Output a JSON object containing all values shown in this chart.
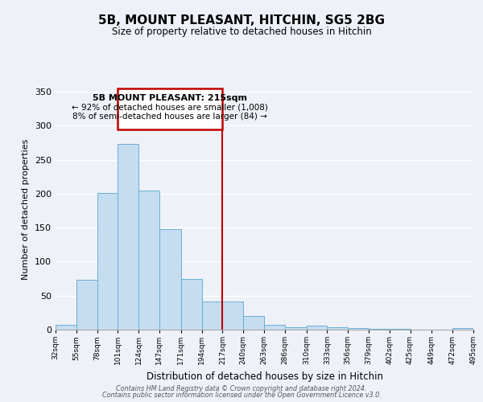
{
  "title": "5B, MOUNT PLEASANT, HITCHIN, SG5 2BG",
  "subtitle": "Size of property relative to detached houses in Hitchin",
  "xlabel": "Distribution of detached houses by size in Hitchin",
  "ylabel": "Number of detached properties",
  "bin_edges": [
    32,
    55,
    78,
    101,
    124,
    147,
    171,
    194,
    217,
    240,
    263,
    286,
    310,
    333,
    356,
    379,
    402,
    425,
    449,
    472,
    495
  ],
  "bin_counts": [
    7,
    73,
    201,
    273,
    205,
    148,
    74,
    41,
    41,
    20,
    7,
    4,
    6,
    4,
    2,
    1,
    1,
    0,
    0,
    2
  ],
  "bar_color": "#c5ddf0",
  "bar_edgecolor": "#6baed6",
  "vline_x": 217,
  "vline_color": "#c00000",
  "annotation_title": "5B MOUNT PLEASANT: 215sqm",
  "annotation_line1": "← 92% of detached houses are smaller (1,008)",
  "annotation_line2": "8% of semi-detached houses are larger (84) →",
  "annotation_box_color": "#c00000",
  "tick_labels": [
    "32sqm",
    "55sqm",
    "78sqm",
    "101sqm",
    "124sqm",
    "147sqm",
    "171sqm",
    "194sqm",
    "217sqm",
    "240sqm",
    "263sqm",
    "286sqm",
    "310sqm",
    "333sqm",
    "356sqm",
    "379sqm",
    "402sqm",
    "425sqm",
    "449sqm",
    "472sqm",
    "495sqm"
  ],
  "footer1": "Contains HM Land Registry data © Crown copyright and database right 2024.",
  "footer2": "Contains public sector information licensed under the Open Government Licence v3.0.",
  "ylim": [
    0,
    355
  ],
  "yticks": [
    0,
    50,
    100,
    150,
    200,
    250,
    300,
    350
  ],
  "bg_color": "#eef2f8"
}
